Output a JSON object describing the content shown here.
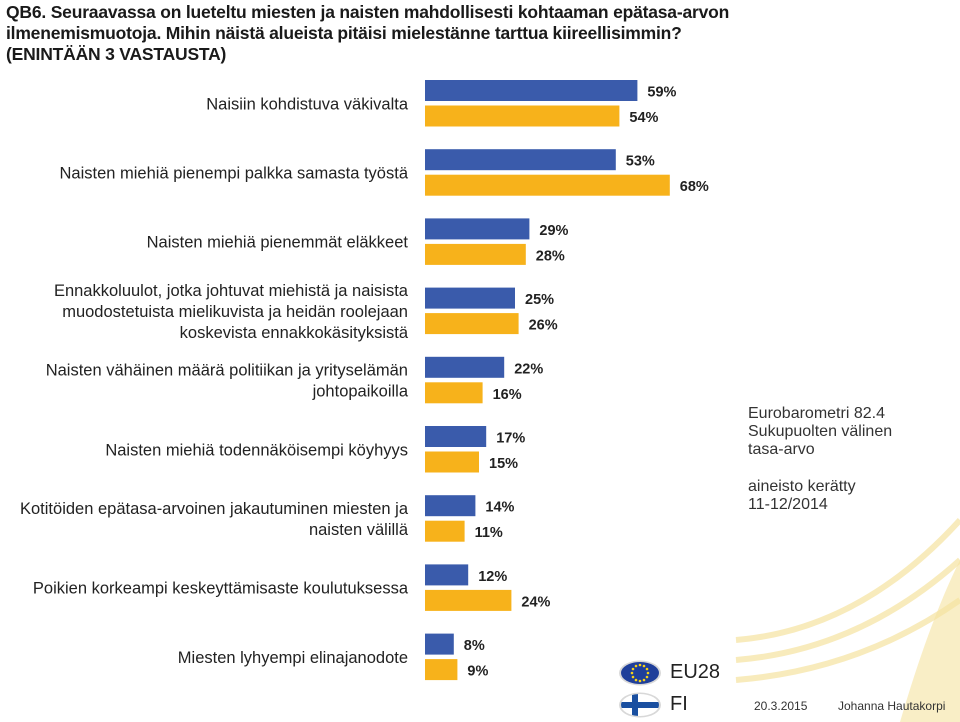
{
  "question": {
    "line1": "QB6. Seuraavassa on lueteltu miesten ja naisten mahdollisesti kohtaaman epätasa-arvon",
    "line2": "ilmenemismuotoja. Mihin näistä alueista pitäisi mielestänne tarttua kiireellisimmin?",
    "line3": "(ENINTÄÄN 3 VASTAUSTA)"
  },
  "side_info": {
    "line1": "Eurobarometri 82.4",
    "line2": "Sukupuolten välinen",
    "line3": "tasa-arvo",
    "line4": "aineisto kerätty",
    "line5": "11-12/2014"
  },
  "legend": [
    {
      "label": "EU28",
      "icon": "eu-flag-icon"
    },
    {
      "label": "FI",
      "icon": "finland-flag-icon"
    }
  ],
  "footer": {
    "date": "20.3.2015",
    "author": "Johanna Hautakorpi"
  },
  "colors": {
    "eu28": "#3a5bab",
    "fi": "#f7b21b",
    "deco": "#f5e3a0"
  },
  "chart_data": {
    "type": "bar",
    "orientation": "horizontal",
    "unit": "%",
    "categories": [
      [
        "Naisiin kohdistuva väkivalta"
      ],
      [
        "Naisten miehiä pienempi palkka samasta työstä"
      ],
      [
        "Naisten miehiä pienemmät eläkkeet"
      ],
      [
        "Ennakkoluulot, jotka johtuvat miehistä ja naisista",
        "muodostetuista mielikuvista ja heidän roolejaan",
        "koskevista ennakkokäsityksistä"
      ],
      [
        "Naisten vähäinen määrä politiikan ja yrityselämän",
        "johtopaikoilla"
      ],
      [
        "Naisten miehiä todennäköisempi köyhyys"
      ],
      [
        "Kotitöiden epätasa-arvoinen jakautuminen miesten ja",
        "naisten välillä"
      ],
      [
        "Poikien korkeampi keskeyttämisaste koulutuksessa"
      ],
      [
        "Miesten lyhyempi elinajanodote"
      ]
    ],
    "series": [
      {
        "name": "EU28",
        "values": [
          59,
          53,
          29,
          25,
          22,
          17,
          14,
          12,
          8
        ]
      },
      {
        "name": "FI",
        "values": [
          54,
          68,
          28,
          26,
          16,
          15,
          11,
          24,
          9
        ]
      }
    ]
  }
}
